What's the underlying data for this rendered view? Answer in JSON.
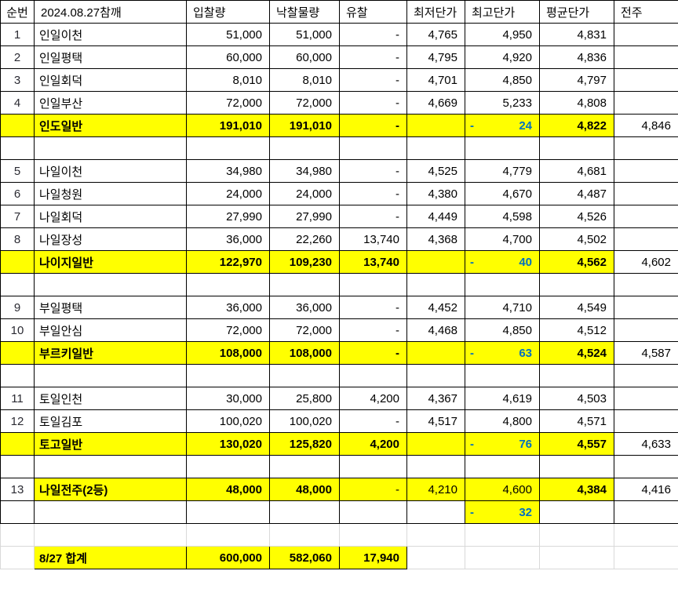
{
  "colors": {
    "highlight_yellow": "#ffff00",
    "accent_blue": "#0070c0",
    "grid_black": "#000000",
    "gridline_gray": "#d9d9d9"
  },
  "table": {
    "columns": [
      {
        "key": "no",
        "label": "순번"
      },
      {
        "key": "name",
        "label": "2024.08.27참깨"
      },
      {
        "key": "bid",
        "label": "입찰량"
      },
      {
        "key": "won",
        "label": "낙찰물량"
      },
      {
        "key": "fail",
        "label": "유찰"
      },
      {
        "key": "min",
        "label": "최저단가"
      },
      {
        "key": "max",
        "label": "최고단가"
      },
      {
        "key": "avg",
        "label": "평균단가"
      },
      {
        "key": "prev",
        "label": "전주"
      }
    ],
    "rows": [
      {
        "type": "data",
        "no": "1",
        "name": "인일이천",
        "bid": "51,000",
        "won": "51,000",
        "fail": "-",
        "min": "4,765",
        "max": "4,950",
        "avg": "4,831",
        "prev": ""
      },
      {
        "type": "data",
        "no": "2",
        "name": "인일평택",
        "bid": "60,000",
        "won": "60,000",
        "fail": "-",
        "min": "4,795",
        "max": "4,920",
        "avg": "4,836",
        "prev": ""
      },
      {
        "type": "data",
        "no": "3",
        "name": "인일회덕",
        "bid": "8,010",
        "won": "8,010",
        "fail": "-",
        "min": "4,701",
        "max": "4,850",
        "avg": "4,797",
        "prev": ""
      },
      {
        "type": "data",
        "no": "4",
        "name": "인일부산",
        "bid": "72,000",
        "won": "72,000",
        "fail": "-",
        "min": "4,669",
        "max": "5,233",
        "avg": "4,808",
        "prev": ""
      },
      {
        "type": "summary",
        "no": "",
        "name": "인도일반",
        "bid": "191,010",
        "won": "191,010",
        "fail": "-",
        "min": "",
        "max": "24",
        "avg": "4,822",
        "prev": "4,846"
      },
      {
        "type": "spacer",
        "no": "",
        "name": "",
        "bid": "",
        "won": "",
        "fail": "",
        "min": "",
        "max": "",
        "avg": "",
        "prev": ""
      },
      {
        "type": "data",
        "no": "5",
        "name": "나일이천",
        "bid": "34,980",
        "won": "34,980",
        "fail": "-",
        "min": "4,525",
        "max": "4,779",
        "avg": "4,681",
        "prev": ""
      },
      {
        "type": "data",
        "no": "6",
        "name": "나일청원",
        "bid": "24,000",
        "won": "24,000",
        "fail": "-",
        "min": "4,380",
        "max": "4,670",
        "avg": "4,487",
        "prev": ""
      },
      {
        "type": "data",
        "no": "7",
        "name": "나일회덕",
        "bid": "27,990",
        "won": "27,990",
        "fail": "-",
        "min": "4,449",
        "max": "4,598",
        "avg": "4,526",
        "prev": ""
      },
      {
        "type": "data",
        "no": "8",
        "name": "나일장성",
        "bid": "36,000",
        "won": "22,260",
        "fail": "13,740",
        "min": "4,368",
        "max": "4,700",
        "avg": "4,502",
        "prev": ""
      },
      {
        "type": "summary",
        "no": "",
        "name": "나이지일반",
        "bid": "122,970",
        "won": "109,230",
        "fail": "13,740",
        "min": "",
        "max": "40",
        "avg": "4,562",
        "prev": "4,602"
      },
      {
        "type": "spacer",
        "no": "",
        "name": "",
        "bid": "",
        "won": "",
        "fail": "",
        "min": "",
        "max": "",
        "avg": "",
        "prev": ""
      },
      {
        "type": "data",
        "no": "9",
        "name": "부일평택",
        "bid": "36,000",
        "won": "36,000",
        "fail": "-",
        "min": "4,452",
        "max": "4,710",
        "avg": "4,549",
        "prev": ""
      },
      {
        "type": "data",
        "no": "10",
        "name": "부일안심",
        "bid": "72,000",
        "won": "72,000",
        "fail": "-",
        "min": "4,468",
        "max": "4,850",
        "avg": "4,512",
        "prev": ""
      },
      {
        "type": "summary",
        "no": "",
        "name": "부르키일반",
        "bid": "108,000",
        "won": "108,000",
        "fail": "-",
        "min": "",
        "max": "63",
        "avg": "4,524",
        "prev": "4,587"
      },
      {
        "type": "spacer",
        "no": "",
        "name": "",
        "bid": "",
        "won": "",
        "fail": "",
        "min": "",
        "max": "",
        "avg": "",
        "prev": ""
      },
      {
        "type": "data",
        "no": "11",
        "name": "토일인천",
        "bid": "30,000",
        "won": "25,800",
        "fail": "4,200",
        "min": "4,367",
        "max": "4,619",
        "avg": "4,503",
        "prev": ""
      },
      {
        "type": "data",
        "no": "12",
        "name": "토일김포",
        "bid": "100,020",
        "won": "100,020",
        "fail": "-",
        "min": "4,517",
        "max": "4,800",
        "avg": "4,571",
        "prev": ""
      },
      {
        "type": "summary",
        "no": "",
        "name": "토고일반",
        "bid": "130,020",
        "won": "125,820",
        "fail": "4,200",
        "min": "",
        "max": "76",
        "avg": "4,557",
        "prev": "4,633"
      },
      {
        "type": "spacer",
        "no": "",
        "name": "",
        "bid": "",
        "won": "",
        "fail": "",
        "min": "",
        "max": "",
        "avg": "",
        "prev": ""
      },
      {
        "type": "item13",
        "no": "13",
        "name": "나일전주(2등)",
        "bid": "48,000",
        "won": "48,000",
        "fail": "-",
        "min": "4,210",
        "max": "4,600",
        "avg": "4,384",
        "prev": "4,416"
      },
      {
        "type": "special32",
        "no": "",
        "name": "",
        "bid": "",
        "won": "",
        "fail": "",
        "min": "",
        "max": "32",
        "avg": "",
        "prev": ""
      },
      {
        "type": "faint",
        "no": "",
        "name": "",
        "bid": "",
        "won": "",
        "fail": "",
        "min": "",
        "max": "",
        "avg": "",
        "prev": ""
      },
      {
        "type": "total",
        "no": "",
        "name": "8/27 합계",
        "bid": "600,000",
        "won": "582,060",
        "fail": "17,940",
        "min": "",
        "max": "",
        "avg": "",
        "prev": ""
      }
    ]
  }
}
